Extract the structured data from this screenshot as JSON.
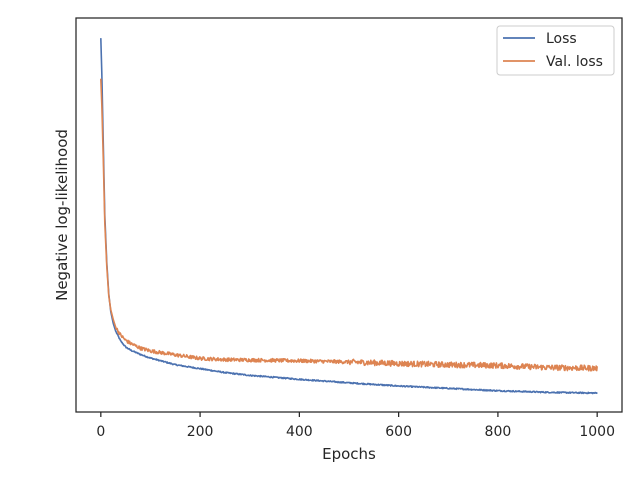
{
  "chart_data": {
    "type": "line",
    "title": "",
    "xlabel": "Epochs",
    "ylabel": "Negative log-likelihood",
    "xlim": [
      -50,
      1050
    ],
    "ylim": [
      0,
      1
    ],
    "x_ticks": [
      0,
      200,
      400,
      600,
      800,
      1000
    ],
    "y_ticks": [],
    "grid": false,
    "legend_position": "top-right",
    "y_values_note": "",
    "series": [
      {
        "name": "Loss",
        "color": "#4c72b0",
        "x": [
          0,
          2,
          5,
          8,
          12,
          16,
          20,
          25,
          30,
          40,
          50,
          60,
          80,
          100,
          150,
          200,
          250,
          300,
          400,
          500,
          600,
          700,
          800,
          900,
          1000
        ],
        "y": [
          0.949,
          0.86,
          0.68,
          0.5,
          0.38,
          0.3,
          0.255,
          0.225,
          0.205,
          0.18,
          0.165,
          0.157,
          0.146,
          0.137,
          0.12,
          0.11,
          0.1,
          0.093,
          0.083,
          0.074,
          0.066,
          0.06,
          0.054,
          0.05,
          0.048
        ]
      },
      {
        "name": "Val. loss",
        "color": "#dd8452",
        "x": [
          0,
          2,
          5,
          8,
          12,
          16,
          20,
          25,
          30,
          40,
          50,
          60,
          80,
          100,
          150,
          200,
          250,
          300,
          400,
          500,
          600,
          700,
          800,
          900,
          1000
        ],
        "y": [
          0.846,
          0.78,
          0.64,
          0.48,
          0.37,
          0.295,
          0.26,
          0.235,
          0.215,
          0.195,
          0.182,
          0.174,
          0.162,
          0.155,
          0.145,
          0.136,
          0.133,
          0.132,
          0.13,
          0.127,
          0.123,
          0.12,
          0.118,
          0.113,
          0.111
        ]
      }
    ]
  }
}
